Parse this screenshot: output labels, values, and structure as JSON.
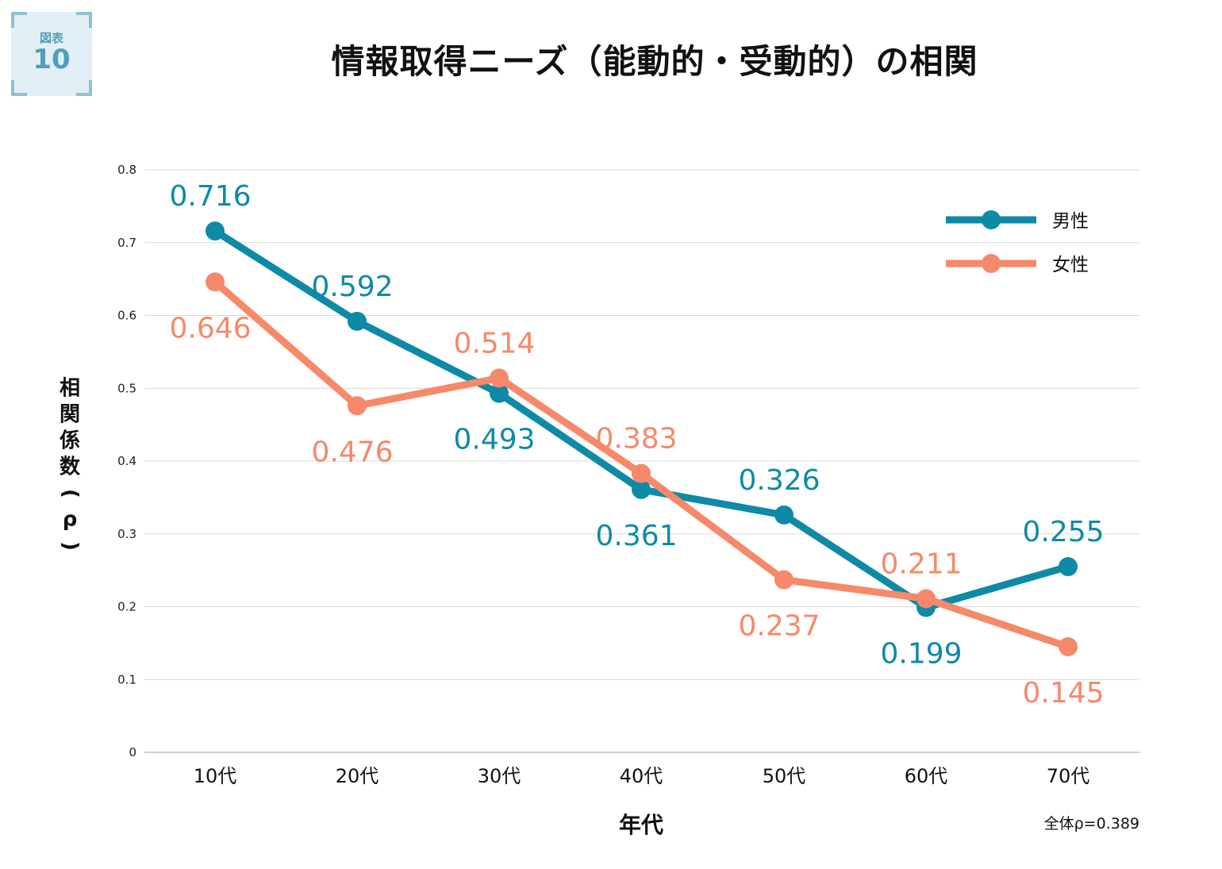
{
  "badge": {
    "label": "図表",
    "number": "10"
  },
  "title": "情報取得ニーズ（能動的・受動的）の相関",
  "colors": {
    "male": "#0e8aa6",
    "female": "#f5896a",
    "grid": "#d9d9d9",
    "axis": "#bfbfbf"
  },
  "chart_data": {
    "type": "line",
    "title": "情報取得ニーズ（能動的・受動的）の相関",
    "xlabel": "年代",
    "ylabel": "相関係数（ρ）",
    "categories": [
      "10代",
      "20代",
      "30代",
      "40代",
      "50代",
      "60代",
      "70代"
    ],
    "series": [
      {
        "name": "男性",
        "values": [
          0.716,
          0.592,
          0.493,
          0.361,
          0.326,
          0.199,
          0.255
        ],
        "labels": [
          "0.716",
          "0.592",
          "0.493",
          "0.361",
          "0.326",
          "0.199",
          "0.255"
        ]
      },
      {
        "name": "女性",
        "values": [
          0.646,
          0.476,
          0.514,
          0.383,
          0.237,
          0.211,
          0.145
        ],
        "labels": [
          "0.646",
          "0.476",
          "0.514",
          "0.383",
          "0.237",
          "0.211",
          "0.145"
        ]
      }
    ],
    "ylim": [
      0,
      0.8
    ],
    "yticks": [
      "0",
      "0.1",
      "0.2",
      "0.3",
      "0.4",
      "0.5",
      "0.6",
      "0.7",
      "0.8"
    ],
    "grid": true,
    "legend": "top-right",
    "note": "全体ρ=0.389"
  }
}
